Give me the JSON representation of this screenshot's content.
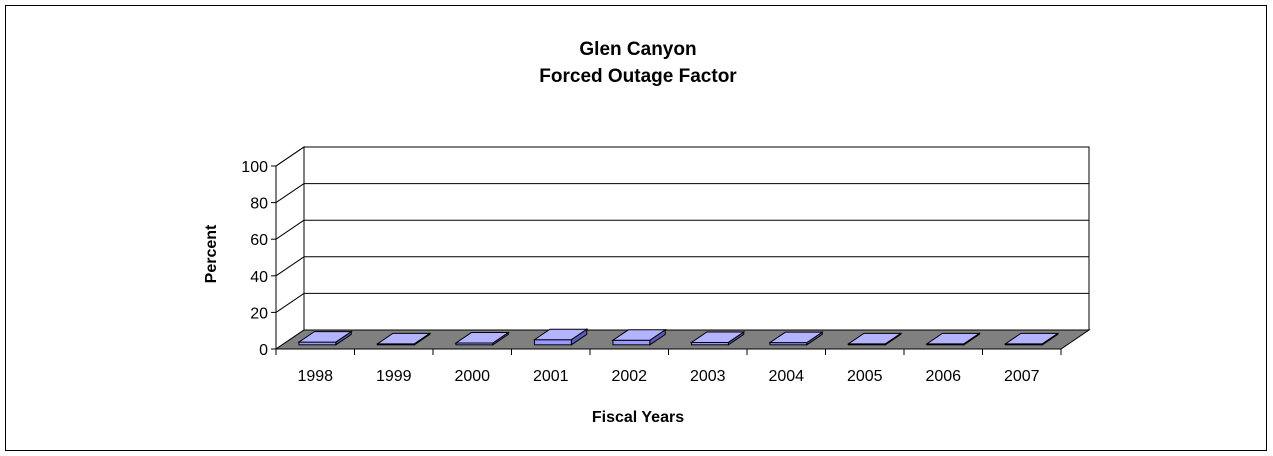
{
  "chart_data": {
    "type": "bar",
    "title": [
      "Glen Canyon",
      "Forced Outage Factor"
    ],
    "xlabel": "Fiscal Years",
    "ylabel": "Percent",
    "categories": [
      "1998",
      "1999",
      "2000",
      "2001",
      "2002",
      "2003",
      "2004",
      "2005",
      "2006",
      "2007"
    ],
    "values": [
      1.5,
      0.3,
      1.0,
      2.8,
      2.5,
      1.3,
      1.2,
      0.3,
      0.3,
      0.3
    ],
    "ylim": [
      0,
      100
    ],
    "yticks": [
      "0",
      "20",
      "40",
      "60",
      "80",
      "100"
    ],
    "grid": true,
    "legend": "none",
    "style": "3d-column",
    "colors": {
      "bar_front": "#9999ff",
      "bar_top": "#b3b3ff",
      "bar_side": "#5c5cbf",
      "floor": "#808080",
      "grid": "#000000",
      "background": "#ffffff"
    }
  }
}
